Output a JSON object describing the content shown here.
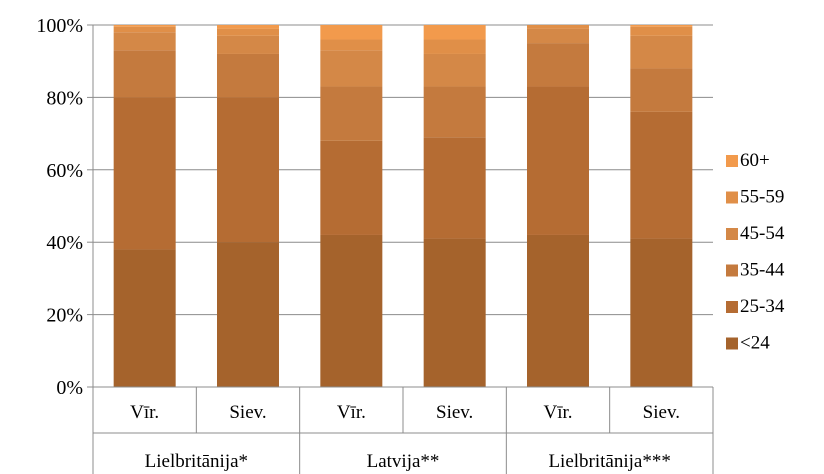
{
  "chart_data": {
    "type": "bar",
    "stacked": true,
    "percent": true,
    "ylim": [
      0,
      100
    ],
    "y_ticks": [
      "0%",
      "20%",
      "40%",
      "60%",
      "80%",
      "100%"
    ],
    "categories": [
      "Vīr.",
      "Siev.",
      "Vīr.",
      "Siev.",
      "Vīr.",
      "Siev."
    ],
    "groups": [
      {
        "label": "Lielbritānija*",
        "span": 2
      },
      {
        "label": "Latvija**",
        "span": 2
      },
      {
        "label": "Lielbritānija***",
        "span": 2
      }
    ],
    "series": [
      {
        "name": "<24",
        "color": "#a5632c",
        "values": [
          38,
          40,
          42,
          41,
          42,
          41
        ]
      },
      {
        "name": "25-34",
        "color": "#b56c33",
        "values": [
          42,
          40,
          26,
          28,
          41,
          35
        ]
      },
      {
        "name": "35-44",
        "color": "#c47a3e",
        "values": [
          13,
          12,
          15,
          14,
          12,
          12
        ]
      },
      {
        "name": "45-54",
        "color": "#d48847",
        "values": [
          5,
          5,
          10,
          9,
          4,
          9
        ]
      },
      {
        "name": "55-59",
        "color": "#e08f48",
        "values": [
          1.5,
          2,
          3,
          4,
          1,
          2.5
        ]
      },
      {
        "name": "60+",
        "color": "#f29a4c",
        "values": [
          0.5,
          1,
          4,
          4,
          0,
          0.5
        ]
      }
    ],
    "legend_position": "right",
    "grid": true
  }
}
